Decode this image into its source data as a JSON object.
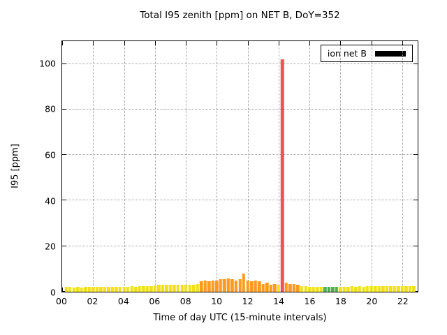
{
  "title": "Total I95 zenith [ppm] on NET B, DoY=352",
  "legend": {
    "label": "ion net B",
    "swatch_color": "#000000"
  },
  "axes": {
    "x_label": "Time of day UTC (15-minute intervals)",
    "y_label": "I95 [ppm]",
    "x_ticks": [
      "00",
      "02",
      "04",
      "06",
      "08",
      "10",
      "12",
      "14",
      "16",
      "18",
      "20",
      "22"
    ],
    "y_ticks": [
      0,
      20,
      40,
      60,
      80,
      100
    ]
  },
  "chart_data": {
    "type": "bar",
    "title": "Total I95 zenith [ppm] on NET B, DoY=352",
    "xlabel": "Time of day UTC (15-minute intervals)",
    "ylabel": "I95 [ppm]",
    "xlim": [
      0,
      23
    ],
    "ylim": [
      0,
      110
    ],
    "grid": true,
    "legend_position": "top-right",
    "series_name": "ion net B",
    "bar_interval_hours": 0.25,
    "x": [
      0.25,
      0.5,
      0.75,
      1,
      1.25,
      1.5,
      1.75,
      2,
      2.25,
      2.5,
      2.75,
      3,
      3.25,
      3.5,
      3.75,
      4,
      4.25,
      4.5,
      4.75,
      5,
      5.25,
      5.5,
      5.75,
      6,
      6.25,
      6.5,
      6.75,
      7,
      7.25,
      7.5,
      7.75,
      8,
      8.25,
      8.5,
      8.75,
      9,
      9.25,
      9.5,
      9.75,
      10,
      10.25,
      10.5,
      10.75,
      11,
      11.25,
      11.5,
      11.75,
      12,
      12.25,
      12.5,
      12.75,
      13,
      13.25,
      13.5,
      13.75,
      14,
      14.25,
      14.5,
      14.75,
      15,
      15.25,
      15.5,
      15.75,
      16,
      16.25,
      16.5,
      16.75,
      17,
      17.25,
      17.5,
      17.75,
      18,
      18.25,
      18.5,
      18.75,
      19,
      19.25,
      19.5,
      19.75,
      20,
      20.25,
      20.5,
      20.75,
      21,
      21.25,
      21.5,
      21.75,
      22,
      22.25,
      22.5,
      22.75
    ],
    "values": [
      2,
      2,
      1.8,
      2,
      1.8,
      2,
      2,
      2.2,
      2,
      2.2,
      2,
      2,
      2.2,
      2,
      2,
      2,
      2.2,
      2.4,
      2.2,
      2.4,
      2.4,
      2.6,
      2.6,
      2.8,
      3,
      3,
      3,
      3,
      3.2,
      3,
      3,
      3,
      3.2,
      3,
      3.4,
      4.5,
      4.8,
      4.5,
      4.8,
      5,
      5.5,
      5.5,
      5.8,
      5.5,
      5,
      5.5,
      8,
      5,
      4.5,
      5,
      4.5,
      3.5,
      4,
      3,
      3.5,
      3.2,
      102,
      4,
      3.5,
      3.5,
      3,
      2.5,
      2.5,
      2.2,
      2,
      2,
      2,
      2,
      2,
      2,
      2,
      2.2,
      2,
      2.2,
      2.4,
      2.2,
      2.4,
      2.2,
      2.4,
      2.4,
      2.6,
      2.4,
      2.6,
      2.4,
      2.6,
      2.4,
      2.6,
      2.4,
      2.6,
      2.4,
      2.5
    ],
    "colors": [
      "y",
      "y",
      "y",
      "y",
      "y",
      "y",
      "y",
      "y",
      "y",
      "y",
      "y",
      "y",
      "y",
      "y",
      "y",
      "y",
      "y",
      "y",
      "y",
      "y",
      "y",
      "y",
      "y",
      "y",
      "y",
      "y",
      "y",
      "y",
      "y",
      "y",
      "y",
      "y",
      "y",
      "y",
      "y",
      "o",
      "o",
      "o",
      "o",
      "o",
      "o",
      "o",
      "o",
      "o",
      "o",
      "o",
      "o",
      "o",
      "o",
      "o",
      "o",
      "o",
      "o",
      "o",
      "o",
      "y",
      "r",
      "o",
      "o",
      "o",
      "o",
      "y",
      "y",
      "y",
      "y",
      "y",
      "y",
      "g",
      "g",
      "g",
      "g",
      "y",
      "y",
      "y",
      "y",
      "y",
      "y",
      "y",
      "y",
      "y",
      "y",
      "y",
      "y",
      "y",
      "y",
      "y",
      "y",
      "y",
      "y",
      "y",
      "y"
    ],
    "color_map": {
      "y": "#f2e118",
      "o": "#ff9a1e",
      "r": "#f25252",
      "g": "#4caf50"
    }
  }
}
